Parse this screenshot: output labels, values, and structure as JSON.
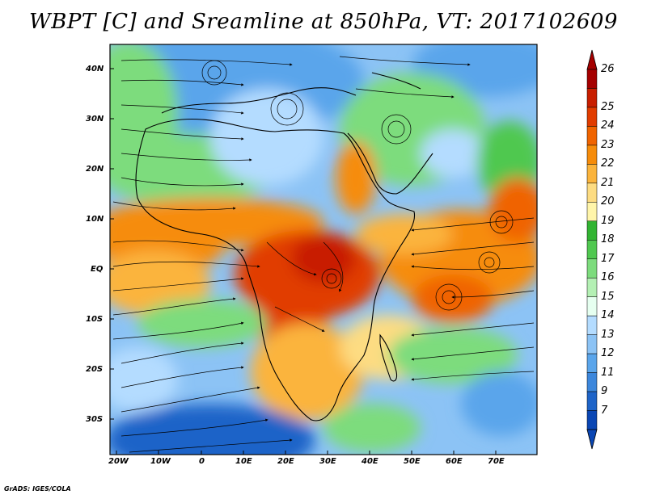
{
  "title": "WBPT [C] and Sreamline at 850hPa, VT: 2017102609",
  "credit": "GrADS: IGES/COLA",
  "lon_labels": [
    "20W",
    "10W",
    "0",
    "10E",
    "20E",
    "30E",
    "40E",
    "50E",
    "60E",
    "70E"
  ],
  "lat_labels": [
    "40N",
    "30N",
    "20N",
    "10N",
    "EQ",
    "10S",
    "20S",
    "30S"
  ],
  "colorbar": {
    "labels": [
      "26",
      "25",
      "24",
      "23",
      "22",
      "21",
      "20",
      "19",
      "18",
      "17",
      "16",
      "15",
      "14",
      "13",
      "12",
      "11",
      "9",
      "7"
    ],
    "colors": [
      "#a50000",
      "#c81e00",
      "#e13c00",
      "#f06400",
      "#f68c0a",
      "#fbb43c",
      "#fddc82",
      "#fff5aa",
      "#32b432",
      "#50c850",
      "#7ddc7d",
      "#b4f0b4",
      "#e6fff0",
      "#b4dcff",
      "#8cc3f5",
      "#5aa5eb",
      "#3c87dc",
      "#1e64c8",
      "#0a46b4"
    ]
  },
  "map": {
    "extent": {
      "lon": [
        -22,
        80
      ],
      "lat": [
        -36,
        45
      ]
    }
  }
}
